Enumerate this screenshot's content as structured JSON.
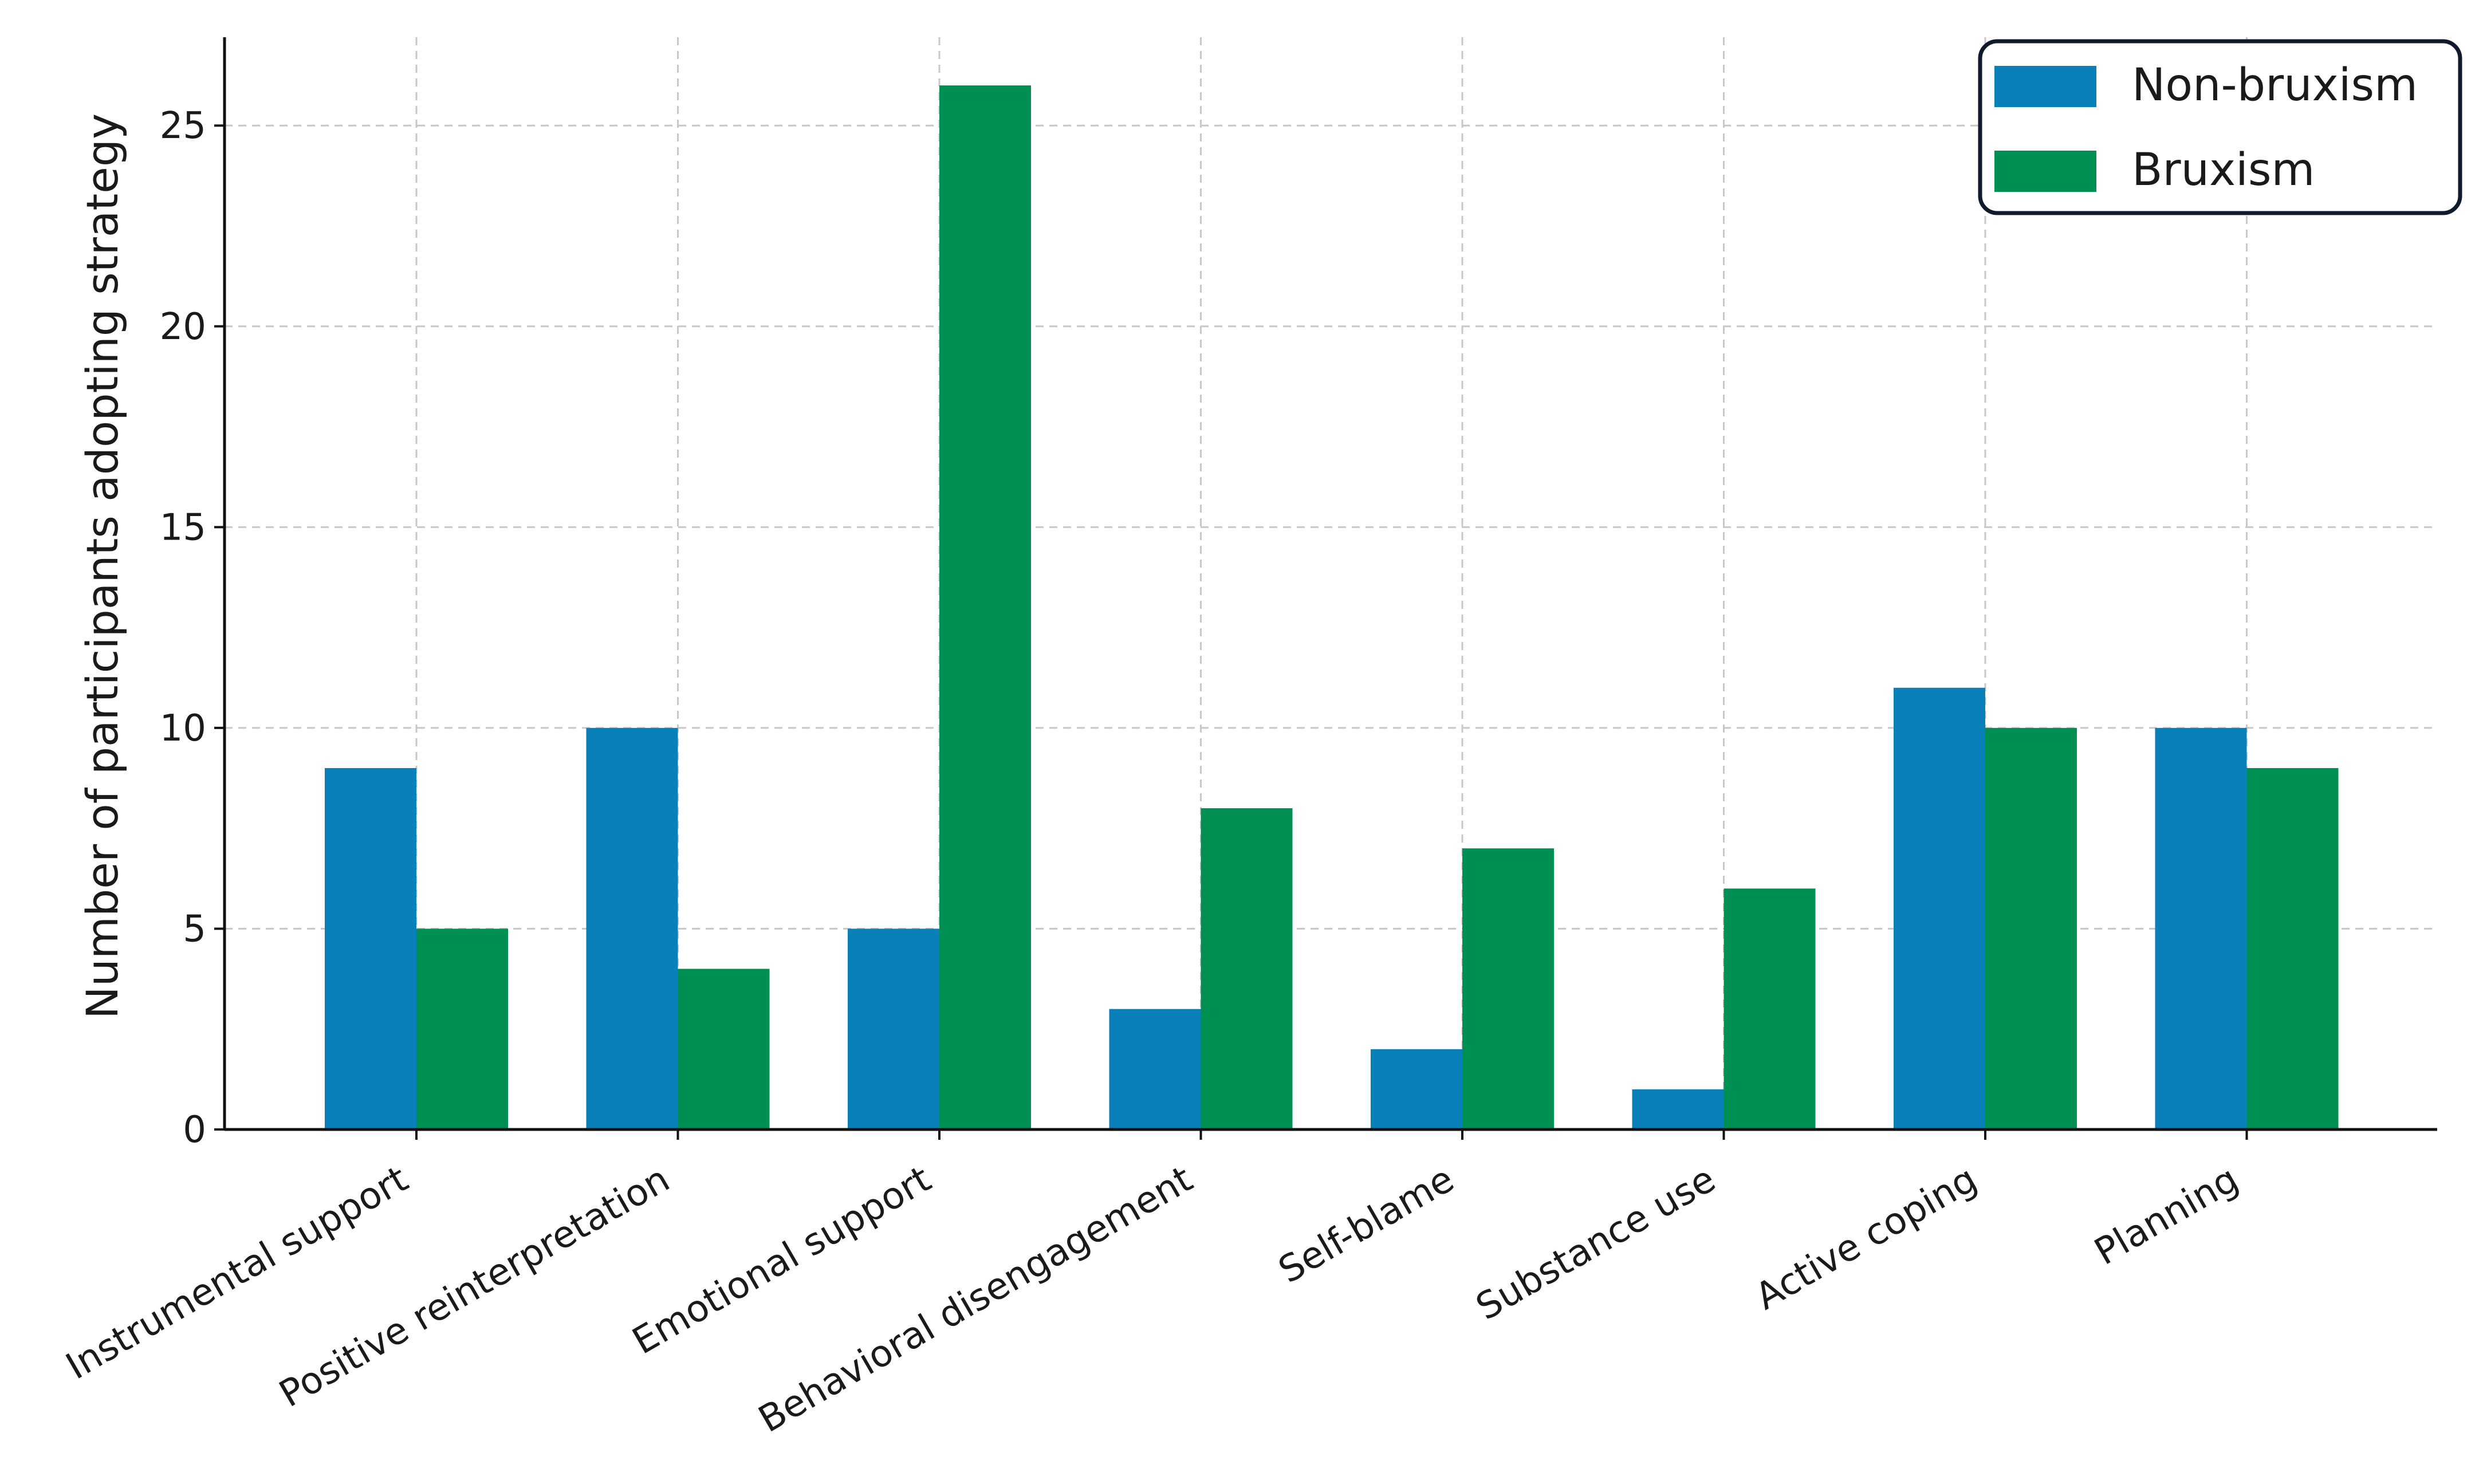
{
  "chart_data": {
    "type": "bar",
    "title": "",
    "xlabel": "",
    "ylabel": "Number of participants adopting strategy",
    "categories": [
      "Instrumental support",
      "Positive reinterpretation",
      "Emotional support",
      "Behavioral disengagement",
      "Self-blame",
      "Substance use",
      "Active coping",
      "Planning"
    ],
    "series": [
      {
        "name": "Non-bruxism",
        "color": "#0a80b9",
        "values": [
          9,
          10,
          5,
          3,
          2,
          1,
          11,
          10
        ]
      },
      {
        "name": "Bruxism",
        "color": "#008f52",
        "values": [
          5,
          4,
          26,
          8,
          7,
          6,
          10,
          9
        ]
      }
    ],
    "yticks": [
      0,
      5,
      10,
      15,
      20,
      25
    ],
    "ylim": [
      0,
      27.2
    ],
    "grid": true,
    "legend_position": "top-right"
  }
}
